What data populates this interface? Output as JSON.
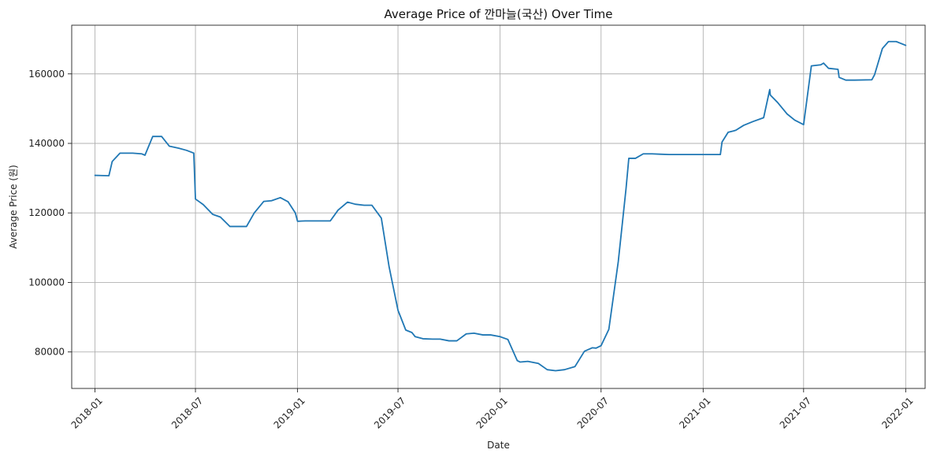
{
  "chart_data": {
    "type": "line",
    "title": "Average Price of 깐마늘(국산) Over Time",
    "xlabel": "Date",
    "ylabel": "Average Price (원)",
    "grid": true,
    "legend": "none",
    "xlim": [
      "2017-11-20",
      "2022-02-05"
    ],
    "ylim": [
      69500,
      174000
    ],
    "x_ticks": [
      {
        "date": "2018-01-01",
        "label": "2018-01"
      },
      {
        "date": "2018-07-01",
        "label": "2018-07"
      },
      {
        "date": "2019-01-01",
        "label": "2019-01"
      },
      {
        "date": "2019-07-01",
        "label": "2019-07"
      },
      {
        "date": "2020-01-01",
        "label": "2020-01"
      },
      {
        "date": "2020-07-01",
        "label": "2020-07"
      },
      {
        "date": "2021-01-01",
        "label": "2021-01"
      },
      {
        "date": "2021-07-01",
        "label": "2021-07"
      },
      {
        "date": "2022-01-01",
        "label": "2022-01"
      }
    ],
    "y_ticks": [
      {
        "value": 80000,
        "label": "80000"
      },
      {
        "value": 100000,
        "label": "100000"
      },
      {
        "value": 120000,
        "label": "120000"
      },
      {
        "value": 140000,
        "label": "140000"
      },
      {
        "value": 160000,
        "label": "160000"
      }
    ],
    "series": [
      {
        "color": "#1f77b4",
        "points": [
          [
            "2018-01-01",
            130800
          ],
          [
            "2018-01-26",
            130700
          ],
          [
            "2018-02-01",
            134800
          ],
          [
            "2018-02-15",
            137200
          ],
          [
            "2018-03-10",
            137200
          ],
          [
            "2018-03-26",
            137000
          ],
          [
            "2018-04-01",
            136600
          ],
          [
            "2018-04-15",
            142000
          ],
          [
            "2018-05-01",
            142000
          ],
          [
            "2018-05-15",
            139200
          ],
          [
            "2018-06-01",
            138600
          ],
          [
            "2018-06-15",
            138000
          ],
          [
            "2018-06-28",
            137200
          ],
          [
            "2018-07-01",
            124000
          ],
          [
            "2018-07-15",
            122400
          ],
          [
            "2018-08-01",
            119600
          ],
          [
            "2018-08-15",
            118800
          ],
          [
            "2018-09-01",
            116100
          ],
          [
            "2018-09-15",
            116100
          ],
          [
            "2018-10-01",
            116100
          ],
          [
            "2018-10-15",
            120000
          ],
          [
            "2018-11-01",
            123300
          ],
          [
            "2018-11-15",
            123500
          ],
          [
            "2018-12-01",
            124400
          ],
          [
            "2018-12-15",
            123200
          ],
          [
            "2018-12-28",
            120000
          ],
          [
            "2019-01-01",
            117600
          ],
          [
            "2019-01-15",
            117700
          ],
          [
            "2019-02-01",
            117700
          ],
          [
            "2019-02-15",
            117700
          ],
          [
            "2019-03-01",
            117700
          ],
          [
            "2019-03-15",
            120800
          ],
          [
            "2019-04-01",
            123100
          ],
          [
            "2019-04-15",
            122500
          ],
          [
            "2019-05-01",
            122200
          ],
          [
            "2019-05-15",
            122200
          ],
          [
            "2019-06-01",
            118500
          ],
          [
            "2019-06-15",
            104500
          ],
          [
            "2019-07-01",
            92000
          ],
          [
            "2019-07-15",
            86300
          ],
          [
            "2019-07-26",
            85600
          ],
          [
            "2019-08-01",
            84400
          ],
          [
            "2019-08-15",
            83800
          ],
          [
            "2019-09-01",
            83700
          ],
          [
            "2019-09-15",
            83700
          ],
          [
            "2019-10-01",
            83200
          ],
          [
            "2019-10-15",
            83200
          ],
          [
            "2019-11-01",
            85200
          ],
          [
            "2019-11-15",
            85400
          ],
          [
            "2019-12-01",
            84900
          ],
          [
            "2019-12-15",
            84900
          ],
          [
            "2020-01-01",
            84400
          ],
          [
            "2020-01-15",
            83600
          ],
          [
            "2020-02-01",
            77500
          ],
          [
            "2020-02-06",
            77100
          ],
          [
            "2020-02-20",
            77300
          ],
          [
            "2020-03-10",
            76700
          ],
          [
            "2020-03-26",
            74900
          ],
          [
            "2020-04-10",
            74600
          ],
          [
            "2020-04-26",
            74900
          ],
          [
            "2020-05-15",
            75800
          ],
          [
            "2020-06-01",
            80200
          ],
          [
            "2020-06-15",
            81200
          ],
          [
            "2020-06-22",
            81100
          ],
          [
            "2020-07-01",
            81800
          ],
          [
            "2020-07-15",
            86500
          ],
          [
            "2020-08-01",
            106000
          ],
          [
            "2020-08-15",
            127000
          ],
          [
            "2020-08-20",
            135700
          ],
          [
            "2020-09-01",
            135700
          ],
          [
            "2020-09-15",
            137000
          ],
          [
            "2020-10-01",
            137000
          ],
          [
            "2020-10-15",
            136900
          ],
          [
            "2020-11-01",
            136800
          ],
          [
            "2020-12-01",
            136800
          ],
          [
            "2021-01-01",
            136800
          ],
          [
            "2021-02-01",
            136800
          ],
          [
            "2021-02-04",
            140400
          ],
          [
            "2021-02-15",
            143200
          ],
          [
            "2021-02-25",
            143600
          ],
          [
            "2021-03-01",
            143800
          ],
          [
            "2021-03-15",
            145200
          ],
          [
            "2021-04-01",
            146300
          ],
          [
            "2021-04-20",
            147400
          ],
          [
            "2021-05-01",
            155500
          ],
          [
            "2021-05-02",
            153900
          ],
          [
            "2021-05-15",
            151800
          ],
          [
            "2021-06-01",
            148500
          ],
          [
            "2021-06-15",
            146700
          ],
          [
            "2021-07-01",
            145400
          ],
          [
            "2021-07-15",
            162300
          ],
          [
            "2021-08-01",
            162600
          ],
          [
            "2021-08-06",
            163100
          ],
          [
            "2021-08-15",
            161600
          ],
          [
            "2021-09-01",
            161300
          ],
          [
            "2021-09-03",
            159000
          ],
          [
            "2021-09-15",
            158200
          ],
          [
            "2021-10-01",
            158200
          ],
          [
            "2021-11-01",
            158300
          ],
          [
            "2021-11-06",
            159800
          ],
          [
            "2021-11-20",
            167300
          ],
          [
            "2021-12-01",
            169300
          ],
          [
            "2021-12-15",
            169300
          ],
          [
            "2022-01-01",
            168200
          ]
        ]
      }
    ]
  }
}
